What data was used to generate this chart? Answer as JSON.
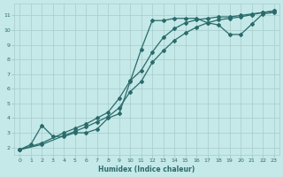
{
  "xlabel": "Humidex (Indice chaleur)",
  "bg_color": "#c5e8e8",
  "grid_color": "#a8cccc",
  "line_color": "#2a6b6b",
  "xlim": [
    -0.5,
    23.5
  ],
  "ylim": [
    1.5,
    11.8
  ],
  "xticks": [
    0,
    1,
    2,
    3,
    4,
    5,
    6,
    7,
    8,
    9,
    10,
    11,
    12,
    13,
    14,
    15,
    16,
    17,
    18,
    19,
    20,
    21,
    22,
    23
  ],
  "yticks": [
    2,
    3,
    4,
    5,
    6,
    7,
    8,
    9,
    10,
    11
  ],
  "line1_x": [
    0,
    1,
    2,
    3,
    4,
    5,
    6,
    7,
    8,
    9,
    10,
    11,
    12,
    13,
    14,
    15,
    16,
    17,
    18,
    19,
    20,
    21,
    22,
    23
  ],
  "line1_y": [
    1.85,
    2.2,
    3.5,
    2.75,
    2.75,
    3.0,
    3.0,
    3.25,
    4.0,
    4.3,
    6.5,
    8.7,
    10.65,
    10.65,
    10.8,
    10.8,
    10.8,
    10.5,
    10.35,
    9.7,
    9.7,
    10.4,
    11.1,
    11.2
  ],
  "line2_x": [
    0,
    2,
    4,
    5,
    6,
    7,
    8,
    9,
    10,
    11,
    12,
    13,
    14,
    15,
    16,
    17,
    18,
    19,
    20,
    21,
    22,
    23
  ],
  "line2_y": [
    1.85,
    2.3,
    3.0,
    3.3,
    3.6,
    4.0,
    4.4,
    5.35,
    6.55,
    7.25,
    8.5,
    9.5,
    10.1,
    10.5,
    10.7,
    10.8,
    10.9,
    10.9,
    11.0,
    11.1,
    11.2,
    11.3
  ],
  "line3_x": [
    0,
    2,
    4,
    5,
    6,
    7,
    8,
    9,
    10,
    11,
    12,
    13,
    14,
    15,
    16,
    17,
    18,
    19,
    20,
    21,
    22,
    23
  ],
  "line3_y": [
    1.85,
    2.2,
    2.8,
    3.1,
    3.4,
    3.75,
    4.1,
    4.7,
    5.8,
    6.5,
    7.8,
    8.6,
    9.3,
    9.8,
    10.2,
    10.5,
    10.7,
    10.8,
    10.9,
    11.05,
    11.2,
    11.3
  ]
}
